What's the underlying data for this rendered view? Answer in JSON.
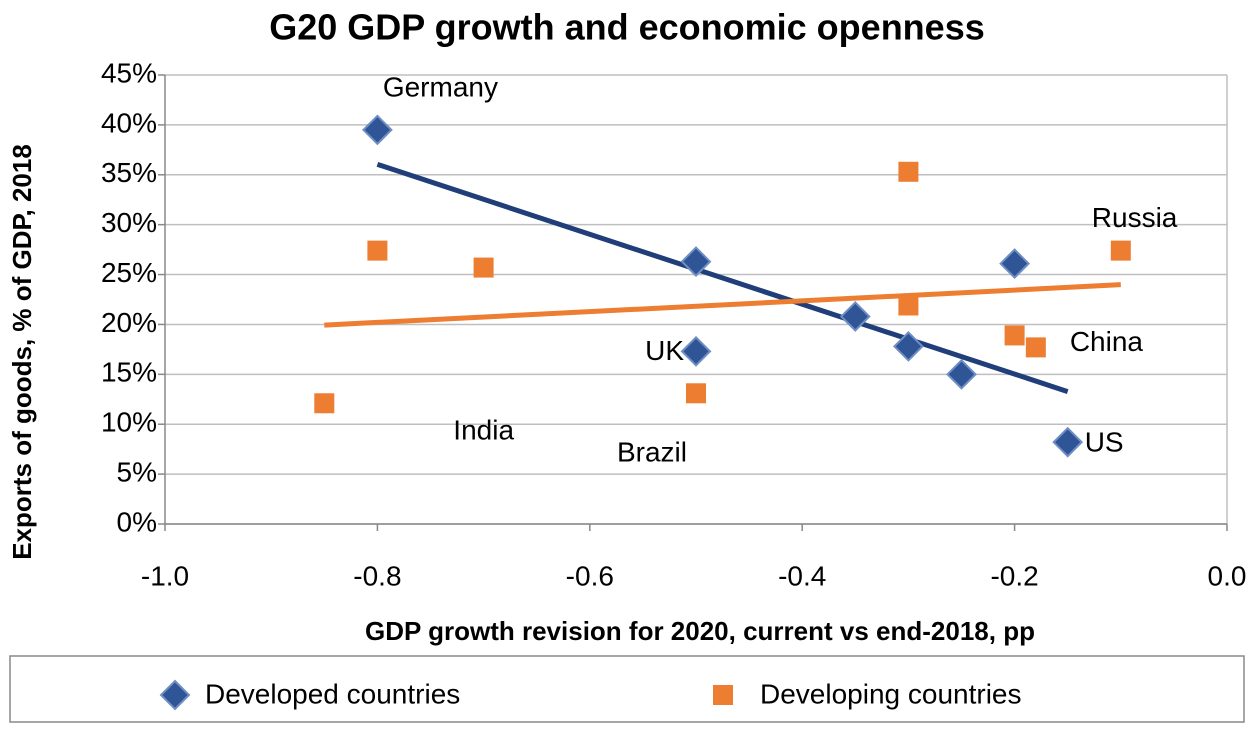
{
  "chart_data": {
    "type": "scatter",
    "title": "G20 GDP growth and economic openness",
    "x_label": "GDP growth revision for 2020, current vs end-2018,  pp",
    "y_label": "Exports of goods, % of GDP, 2018",
    "xlim": [
      -1.0,
      0.0
    ],
    "xticks": [
      {
        "value": -1.0,
        "label": "-1.0"
      },
      -0.8,
      -0.6,
      -0.4,
      -0.2,
      {
        "value": 0.0,
        "label": "0.0"
      }
    ],
    "ylim": [
      0,
      45
    ],
    "yticks": [
      {
        "value": 0,
        "label": "0%"
      },
      {
        "value": 5,
        "label": "5%"
      },
      {
        "value": 10,
        "label": "10%"
      },
      {
        "value": 15,
        "label": "15%"
      },
      {
        "value": 20,
        "label": "20%"
      },
      {
        "value": 25,
        "label": "25%"
      },
      {
        "value": 30,
        "label": "30%"
      },
      {
        "value": 35,
        "label": "35%"
      },
      {
        "value": 40,
        "label": "40%"
      },
      {
        "value": 45,
        "label": "45%"
      }
    ],
    "grid": true,
    "legend": "bottom",
    "trendline": "linear",
    "series": [
      {
        "name": "Developed countries",
        "color": "#2f5597",
        "marker": "diamond",
        "trend_color": "#203e7a",
        "x": [
          -0.8,
          -0.5,
          -0.5,
          -0.35,
          -0.3,
          -0.25,
          -0.2,
          -0.15
        ],
        "values": [
          39.5,
          26.3,
          17.3,
          20.8,
          17.8,
          15.0,
          26.1,
          8.2
        ],
        "labels": [
          "Germany",
          null,
          "UK",
          null,
          null,
          null,
          null,
          "US"
        ]
      },
      {
        "name": "Developing countries",
        "color": "#ed7d31",
        "marker": "square",
        "trend_color": "#ed7d31",
        "x": [
          -0.85,
          -0.8,
          -0.7,
          -0.5,
          -0.3,
          -0.3,
          -0.2,
          -0.18,
          -0.1
        ],
        "values": [
          12.1,
          27.4,
          25.7,
          13.1,
          35.3,
          21.9,
          18.9,
          17.7,
          27.4
        ],
        "labels": [
          "India",
          null,
          null,
          "Brazil",
          null,
          null,
          null,
          "China",
          "Russia"
        ]
      }
    ]
  }
}
